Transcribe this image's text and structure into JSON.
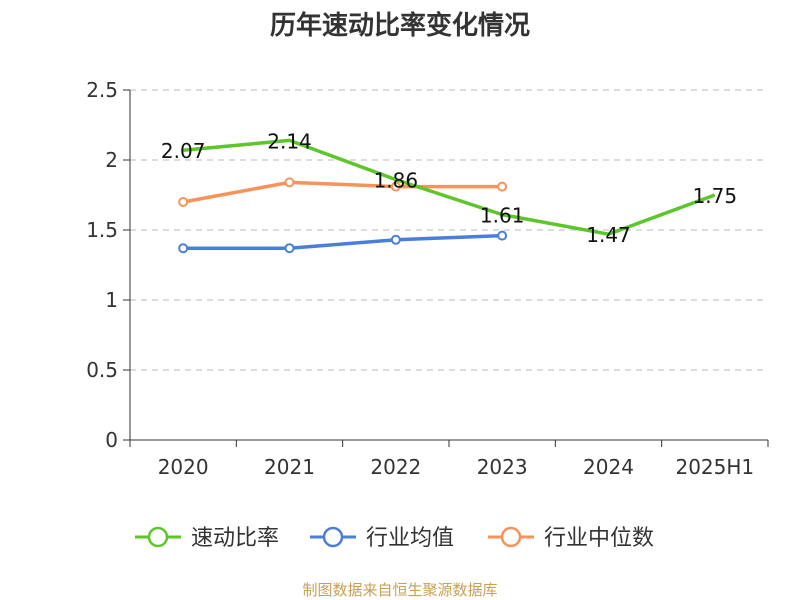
{
  "chart_data": {
    "type": "line",
    "title": "历年速动比率变化情况",
    "categories": [
      "2020",
      "2021",
      "2022",
      "2023",
      "2024",
      "2025H1"
    ],
    "ylim": [
      0,
      2.5
    ],
    "yticks": [
      "0",
      "0.5",
      "1",
      "1.5",
      "2",
      "2.5"
    ],
    "grid": true,
    "legend_position": "bottom",
    "series": [
      {
        "name": "速动比率",
        "color": "#5cc62a",
        "values": [
          2.07,
          2.14,
          1.86,
          1.61,
          1.47,
          1.75
        ],
        "labels": [
          "2.07",
          "2.14",
          "1.86",
          "1.61",
          "1.47",
          "1.75"
        ]
      },
      {
        "name": "行业均值",
        "color": "#4a7fd9",
        "values": [
          1.37,
          1.37,
          1.43,
          1.46,
          null,
          null
        ]
      },
      {
        "name": "行业中位数",
        "color": "#f5935a",
        "values": [
          1.7,
          1.84,
          1.81,
          1.81,
          null,
          null
        ]
      }
    ]
  },
  "source": "制图数据来自恒生聚源数据库"
}
